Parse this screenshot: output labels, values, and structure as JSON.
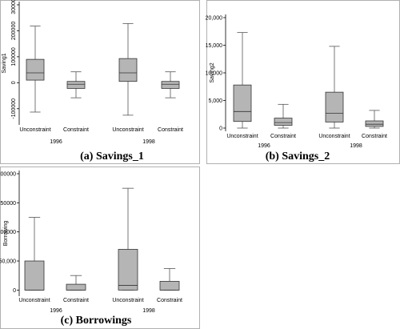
{
  "chart_data": [
    {
      "type": "boxplot",
      "caption": "(a) Savings_1",
      "ylabel": "Saving1",
      "ylim": [
        -150000,
        300000
      ],
      "yticks": [
        -100000,
        0,
        100000,
        200000,
        300000
      ],
      "ytick_labels": [
        "-100000",
        "0",
        "100000",
        "200000",
        "300000"
      ],
      "ytick_rotated": true,
      "categories": [
        "Unconstraint",
        "Constraint",
        "Unconstraint",
        "Constraint"
      ],
      "groups": [
        "1996",
        "1998"
      ],
      "boxes": [
        {
          "group": "1996",
          "category": "Unconstraint",
          "whisker_low": -113000,
          "q1": 10000,
          "median": 38000,
          "q3": 90000,
          "whisker_high": 218000
        },
        {
          "group": "1996",
          "category": "Constraint",
          "whisker_low": -58000,
          "q1": -22000,
          "median": -6000,
          "q3": 5000,
          "whisker_high": 42000
        },
        {
          "group": "1998",
          "category": "Unconstraint",
          "whisker_low": -125000,
          "q1": 5000,
          "median": 38000,
          "q3": 93000,
          "whisker_high": 228000
        },
        {
          "group": "1998",
          "category": "Constraint",
          "whisker_low": -58000,
          "q1": -22000,
          "median": -6000,
          "q3": 5000,
          "whisker_high": 42000
        }
      ]
    },
    {
      "type": "boxplot",
      "caption": "(b) Savings_2",
      "ylabel": "Saving2",
      "ylim": [
        0,
        20000
      ],
      "yticks": [
        0,
        5000,
        10000,
        15000,
        20000
      ],
      "ytick_labels": [
        "0",
        "5,000",
        "10,000",
        "15,000",
        "20,000"
      ],
      "ytick_rotated": false,
      "categories": [
        "Unconstraint",
        "Constraint",
        "Unconstraint",
        "Constraint"
      ],
      "groups": [
        "1996",
        "1998"
      ],
      "boxes": [
        {
          "group": "1996",
          "category": "Unconstraint",
          "whisker_low": 0,
          "q1": 1200,
          "median": 3000,
          "q3": 7800,
          "whisker_high": 17300
        },
        {
          "group": "1996",
          "category": "Constraint",
          "whisker_low": 0,
          "q1": 500,
          "median": 1000,
          "q3": 1800,
          "whisker_high": 4300
        },
        {
          "group": "1998",
          "category": "Unconstraint",
          "whisker_low": 0,
          "q1": 1100,
          "median": 2700,
          "q3": 6500,
          "whisker_high": 14800
        },
        {
          "group": "1998",
          "category": "Constraint",
          "whisker_low": 0,
          "q1": 300,
          "median": 700,
          "q3": 1300,
          "whisker_high": 3200
        }
      ]
    },
    {
      "type": "boxplot",
      "caption": "(c) Borrowings",
      "ylabel": "Borrowing",
      "ylim": [
        -5000,
        200000
      ],
      "yticks": [
        0,
        50000,
        100000,
        150000,
        200000
      ],
      "ytick_labels": [
        "0",
        "50,000",
        "100000",
        "150000",
        "200000"
      ],
      "ytick_rotated": false,
      "categories": [
        "Unconstraint",
        "Constraint",
        "Unconstraint",
        "Constraint"
      ],
      "groups": [
        "1996",
        "1998"
      ],
      "boxes": [
        {
          "group": "1996",
          "category": "Unconstraint",
          "whisker_low": 0,
          "q1": 0,
          "median": 0,
          "q3": 50000,
          "whisker_high": 125000
        },
        {
          "group": "1996",
          "category": "Constraint",
          "whisker_low": 0,
          "q1": 0,
          "median": 0,
          "q3": 10000,
          "whisker_high": 25000
        },
        {
          "group": "1998",
          "category": "Unconstraint",
          "whisker_low": 0,
          "q1": 0,
          "median": 8000,
          "q3": 70000,
          "whisker_high": 175000
        },
        {
          "group": "1998",
          "category": "Constraint",
          "whisker_low": 0,
          "q1": 0,
          "median": 0,
          "q3": 15000,
          "whisker_high": 37000
        }
      ]
    }
  ]
}
